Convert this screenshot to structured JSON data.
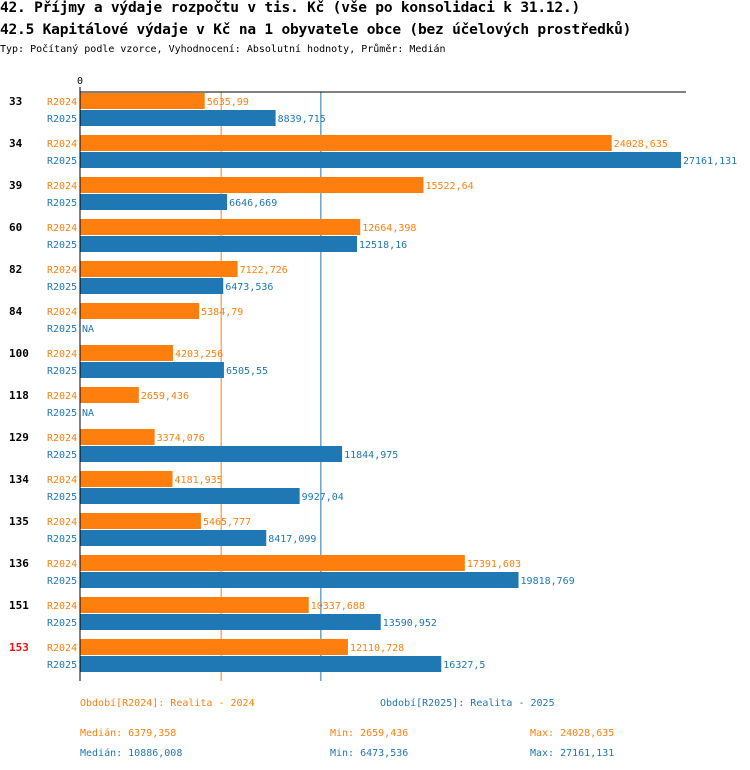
{
  "header": {
    "title1": "42. Příjmy a výdaje rozpočtu v tis. Kč (vše po konsolidaci k 31.12.)",
    "title2": "42.5 Kapitálové výdaje v Kč na 1 obyvatele obce (bez účelových prostředků)",
    "subtitle": "Typ: Počítaný podle vzorce, Vyhodnocení: Absolutní hodnoty, Průměr: Medián"
  },
  "chart_data": {
    "type": "bar",
    "orientation": "horizontal",
    "title": "42.5 Kapitálové výdaje v Kč na 1 obyvatele obce (bez účelových prostředků)",
    "x_zero_label": "0",
    "xlim": [
      0,
      27161.131
    ],
    "highlight_category": "153",
    "categories": [
      "33",
      "34",
      "39",
      "60",
      "82",
      "84",
      "100",
      "118",
      "129",
      "134",
      "135",
      "136",
      "151",
      "153"
    ],
    "series": [
      {
        "name": "R2024",
        "color": "#ff7f0e",
        "values": [
          5635.99,
          24028.635,
          15522.64,
          12664.398,
          7122.726,
          5384.79,
          4203.256,
          2659.436,
          3374.076,
          4181.935,
          5465.777,
          17391.603,
          10337.688,
          12110.728
        ],
        "labels": [
          "5635,99",
          "24028,635",
          "15522,64",
          "12664,398",
          "7122,726",
          "5384,79",
          "4203,256",
          "2659,436",
          "3374,076",
          "4181,935",
          "5465,777",
          "17391,603",
          "10337,688",
          "12110,728"
        ],
        "median": 6379.358
      },
      {
        "name": "R2025",
        "color": "#1f77b4",
        "values": [
          8839.715,
          27161.131,
          6646.669,
          12518.16,
          6473.536,
          null,
          6505.55,
          null,
          11844.975,
          9927.04,
          8417.099,
          19818.769,
          13590.952,
          16327.5
        ],
        "labels": [
          "8839,715",
          "27161,131",
          "6646,669",
          "12518,16",
          "6473,536",
          "NA",
          "6505,55",
          "NA",
          "11844,975",
          "9927,04",
          "8417,099",
          "19818,769",
          "13590,952",
          "16327,5"
        ],
        "median": 10886.008
      }
    ]
  },
  "legend": {
    "period1": "Období[R2024]: Realita - 2024",
    "period2": "Období[R2025]: Realita - 2025",
    "stats1": {
      "median": "Medián: 6379,358",
      "min": "Min: 2659,436",
      "max": "Max: 24028,635"
    },
    "stats2": {
      "median": "Medián: 10886,008",
      "min": "Min: 6473,536",
      "max": "Max: 27161,131"
    }
  },
  "colors": {
    "r2024": "#ff7f0e",
    "r2025": "#1f77b4",
    "highlight": "#ee1111"
  }
}
